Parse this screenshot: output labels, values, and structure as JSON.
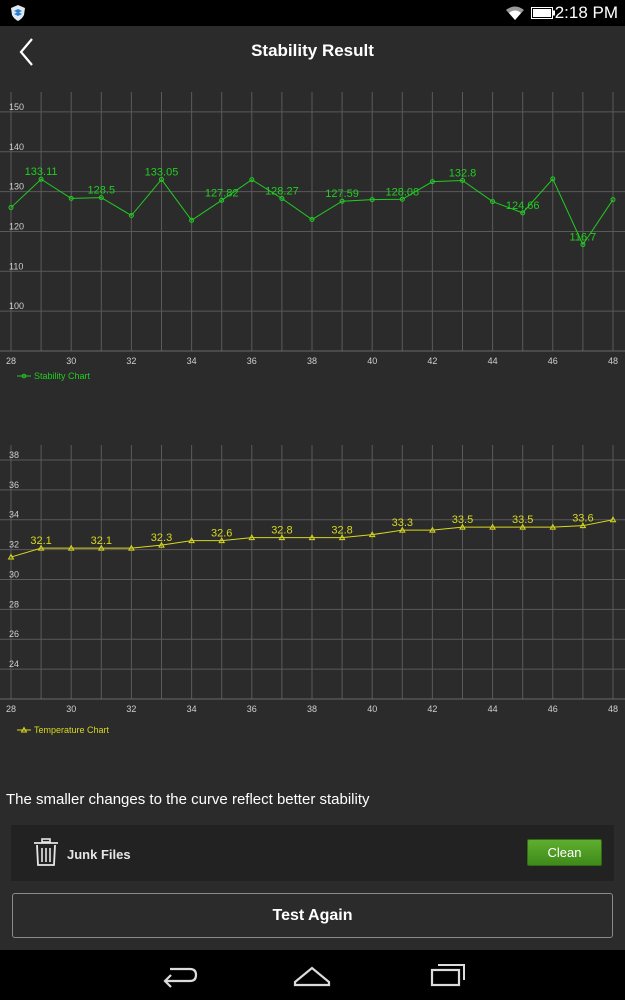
{
  "status_bar": {
    "time": "2:18 PM"
  },
  "header": {
    "title": "Stability Result"
  },
  "stability_chart": {
    "type": "line",
    "legend": "Stability Chart",
    "color": "#22cc22",
    "xlim": [
      28,
      48
    ],
    "ylim": [
      90,
      155
    ],
    "x_ticks": [
      28,
      30,
      32,
      34,
      36,
      38,
      40,
      42,
      44,
      46,
      48
    ],
    "y_ticks": [
      100,
      110,
      120,
      130,
      140,
      150
    ],
    "points": [
      {
        "x": 28,
        "y": 126.0,
        "label": ""
      },
      {
        "x": 29,
        "y": 133.11,
        "label": "133.11"
      },
      {
        "x": 30,
        "y": 128.3,
        "label": ""
      },
      {
        "x": 31,
        "y": 128.5,
        "label": "128.5"
      },
      {
        "x": 32,
        "y": 124.0,
        "label": ""
      },
      {
        "x": 33,
        "y": 133.05,
        "label": "133.05"
      },
      {
        "x": 34,
        "y": 122.8,
        "label": ""
      },
      {
        "x": 35,
        "y": 127.82,
        "label": "127.82"
      },
      {
        "x": 36,
        "y": 133.0,
        "label": ""
      },
      {
        "x": 37,
        "y": 128.27,
        "label": "128.27"
      },
      {
        "x": 38,
        "y": 123.0,
        "label": ""
      },
      {
        "x": 39,
        "y": 127.59,
        "label": "127.59"
      },
      {
        "x": 40,
        "y": 128.0,
        "label": ""
      },
      {
        "x": 41,
        "y": 128.08,
        "label": "128.08"
      },
      {
        "x": 42,
        "y": 132.5,
        "label": ""
      },
      {
        "x": 43,
        "y": 132.8,
        "label": "132.8"
      },
      {
        "x": 44,
        "y": 127.5,
        "label": ""
      },
      {
        "x": 45,
        "y": 124.66,
        "label": "124.66"
      },
      {
        "x": 46,
        "y": 133.2,
        "label": ""
      },
      {
        "x": 47,
        "y": 116.7,
        "label": "116.7"
      },
      {
        "x": 48,
        "y": 128.0,
        "label": ""
      }
    ]
  },
  "temperature_chart": {
    "type": "line",
    "legend": "Temperature Chart",
    "color": "#d8d81e",
    "xlim": [
      28,
      48
    ],
    "ylim": [
      22,
      39
    ],
    "x_ticks": [
      28,
      30,
      32,
      34,
      36,
      38,
      40,
      42,
      44,
      46,
      48
    ],
    "y_ticks": [
      24,
      26,
      28,
      30,
      32,
      34,
      36,
      38
    ],
    "points": [
      {
        "x": 28,
        "y": 31.5,
        "label": ""
      },
      {
        "x": 29,
        "y": 32.1,
        "label": "32.1"
      },
      {
        "x": 30,
        "y": 32.1,
        "label": ""
      },
      {
        "x": 31,
        "y": 32.1,
        "label": "32.1"
      },
      {
        "x": 32,
        "y": 32.1,
        "label": ""
      },
      {
        "x": 33,
        "y": 32.3,
        "label": "32.3"
      },
      {
        "x": 34,
        "y": 32.6,
        "label": ""
      },
      {
        "x": 35,
        "y": 32.6,
        "label": "32.6"
      },
      {
        "x": 36,
        "y": 32.8,
        "label": ""
      },
      {
        "x": 37,
        "y": 32.8,
        "label": "32.8"
      },
      {
        "x": 38,
        "y": 32.8,
        "label": ""
      },
      {
        "x": 39,
        "y": 32.8,
        "label": "32.8"
      },
      {
        "x": 40,
        "y": 33.0,
        "label": ""
      },
      {
        "x": 41,
        "y": 33.3,
        "label": "33.3"
      },
      {
        "x": 42,
        "y": 33.3,
        "label": ""
      },
      {
        "x": 43,
        "y": 33.5,
        "label": "33.5"
      },
      {
        "x": 44,
        "y": 33.5,
        "label": ""
      },
      {
        "x": 45,
        "y": 33.5,
        "label": "33.5"
      },
      {
        "x": 46,
        "y": 33.5,
        "label": ""
      },
      {
        "x": 47,
        "y": 33.6,
        "label": "33.6"
      },
      {
        "x": 48,
        "y": 34.0,
        "label": ""
      }
    ]
  },
  "note": "The smaller changes to the curve reflect better stability",
  "junk": {
    "label": "Junk Files",
    "button": "Clean",
    "button_color": "#4c9e22"
  },
  "test_again": "Test Again",
  "icons": {
    "app": "shield-app-icon",
    "wifi": "wifi-icon",
    "battery": "battery-icon",
    "back": "back-chevron-icon",
    "trash": "trash-icon",
    "nav_back": "nav-back-icon",
    "nav_home": "nav-home-icon",
    "nav_recents": "nav-recents-icon"
  }
}
